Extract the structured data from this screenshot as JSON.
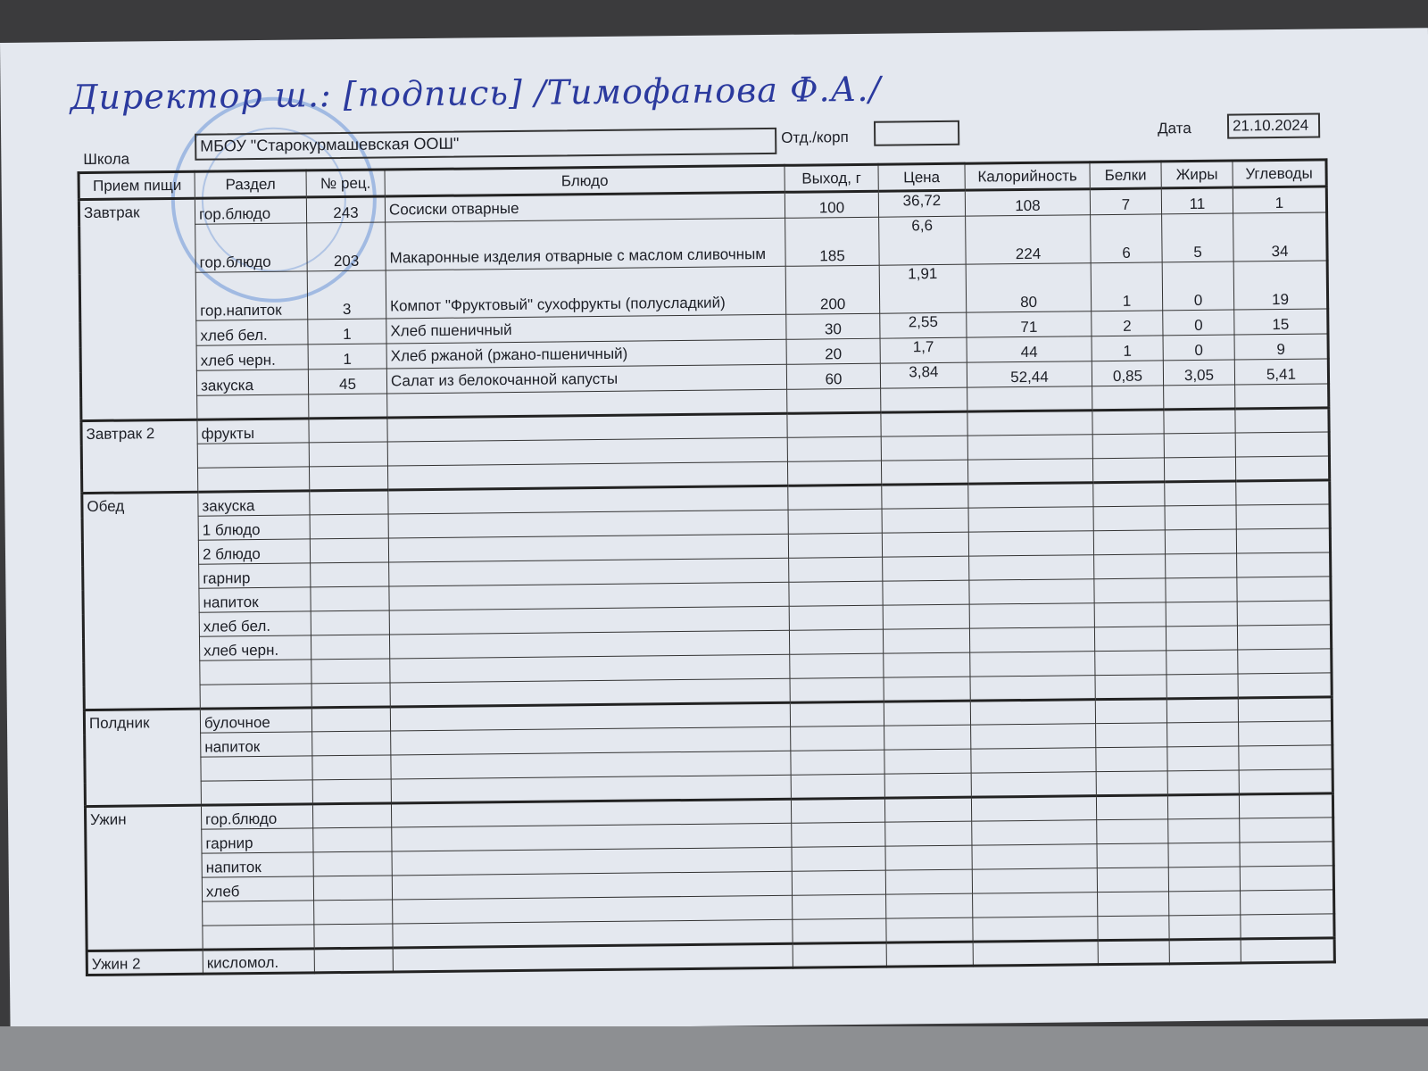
{
  "signature": {
    "text": "Директор ш.: [подпись] /Тимофанова Ф.А./"
  },
  "header": {
    "school_label": "Школа",
    "school_value": "МБОУ \"Старокурмашевская ООШ\"",
    "dept_label": "Отд./корп",
    "dept_value": "",
    "date_label": "Дата",
    "date_value": "21.10.2024"
  },
  "columns": [
    "Прием пищи",
    "Раздел",
    "№ рец.",
    "Блюдо",
    "Выход, г",
    "Цена",
    "Калорийность",
    "Белки",
    "Жиры",
    "Углеводы"
  ],
  "meals": [
    {
      "name": "Завтрак",
      "rows": [
        {
          "section": "гор.блюдо",
          "recipe": "243",
          "dish": "Сосиски отварные",
          "yield": "100",
          "price": "36,72",
          "kcal": "108",
          "protein": "7",
          "fat": "11",
          "carbs": "1"
        },
        {
          "section": "гор.блюдо",
          "recipe": "203",
          "dish": "Макаронные изделия отварные с маслом сливочным",
          "yield": "185",
          "price": "6,6",
          "kcal": "224",
          "protein": "6",
          "fat": "5",
          "carbs": "34"
        },
        {
          "section": "гор.напиток",
          "recipe": "3",
          "dish": "Компот \"Фруктовый\" сухофрукты (полусладкий)",
          "yield": "200",
          "price": "1,91",
          "kcal": "80",
          "protein": "1",
          "fat": "0",
          "carbs": "19"
        },
        {
          "section": "хлеб бел.",
          "recipe": "1",
          "dish": "Хлеб пшеничный",
          "yield": "30",
          "price": "2,55",
          "kcal": "71",
          "protein": "2",
          "fat": "0",
          "carbs": "15"
        },
        {
          "section": "хлеб черн.",
          "recipe": "1",
          "dish": "Хлеб ржаной (ржано-пшеничный)",
          "yield": "20",
          "price": "1,7",
          "kcal": "44",
          "protein": "1",
          "fat": "0",
          "carbs": "9"
        },
        {
          "section": "закуска",
          "recipe": "45",
          "dish": "Салат из белокочанной капусты",
          "yield": "60",
          "price": "3,84",
          "kcal": "52,44",
          "protein": "0,85",
          "fat": "3,05",
          "carbs": "5,41"
        },
        {
          "section": ""
        }
      ]
    },
    {
      "name": "Завтрак 2",
      "rows": [
        {
          "section": "фрукты"
        },
        {
          "section": ""
        },
        {
          "section": ""
        }
      ]
    },
    {
      "name": "Обед",
      "rows": [
        {
          "section": "закуска"
        },
        {
          "section": "1 блюдо"
        },
        {
          "section": "2 блюдо"
        },
        {
          "section": "гарнир"
        },
        {
          "section": "напиток"
        },
        {
          "section": "хлеб бел."
        },
        {
          "section": "хлеб черн."
        },
        {
          "section": ""
        },
        {
          "section": ""
        }
      ]
    },
    {
      "name": "Полдник",
      "rows": [
        {
          "section": "булочное"
        },
        {
          "section": "напиток"
        },
        {
          "section": ""
        },
        {
          "section": ""
        }
      ]
    },
    {
      "name": "Ужин",
      "rows": [
        {
          "section": "гор.блюдо"
        },
        {
          "section": "гарнир"
        },
        {
          "section": "напиток"
        },
        {
          "section": "хлеб"
        },
        {
          "section": ""
        },
        {
          "section": ""
        }
      ]
    },
    {
      "name": "Ужин 2",
      "rows": [
        {
          "section": "кисломол."
        }
      ]
    }
  ]
}
